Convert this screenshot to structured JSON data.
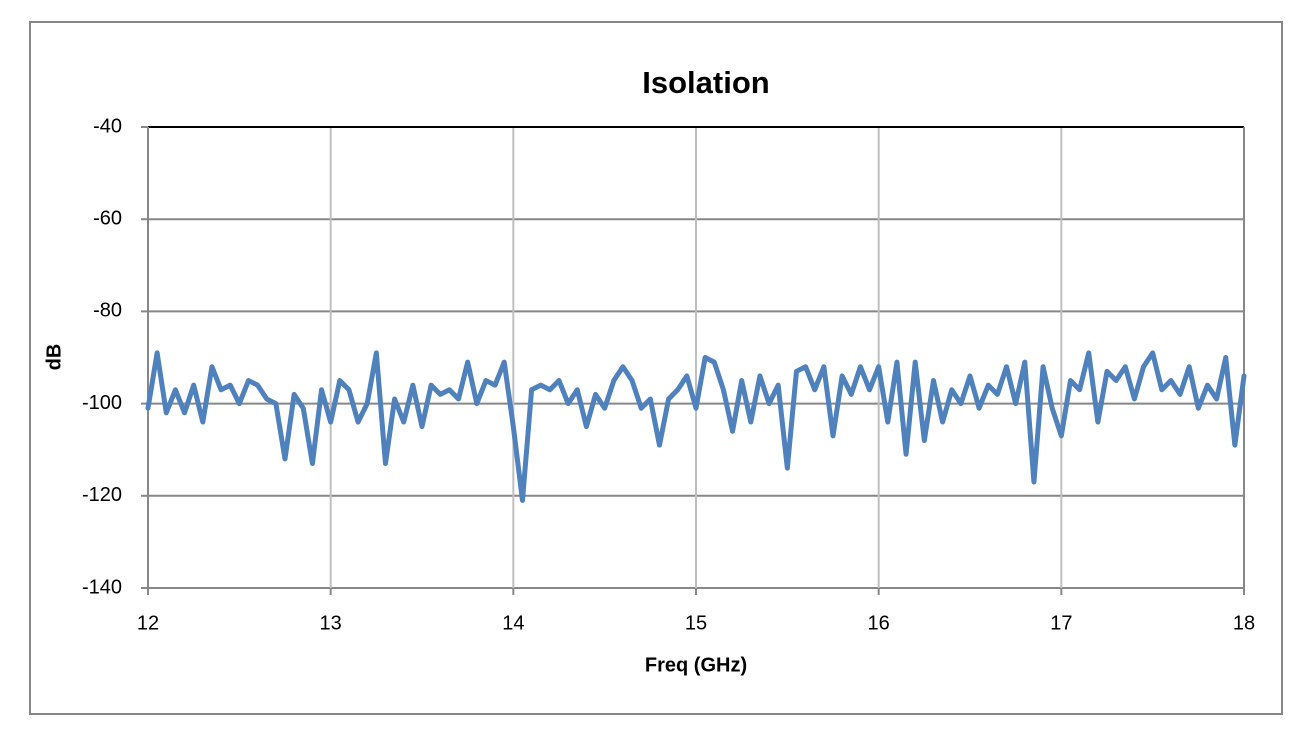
{
  "chart_data": {
    "type": "line",
    "title": "Isolation",
    "xlabel": "Freq (GHz)",
    "ylabel": "dB",
    "x": [
      12.0,
      12.05,
      12.1,
      12.15,
      12.2,
      12.25,
      12.3,
      12.35,
      12.4,
      12.45,
      12.5,
      12.55,
      12.6,
      12.65,
      12.7,
      12.75,
      12.8,
      12.85,
      12.9,
      12.95,
      13.0,
      13.05,
      13.1,
      13.15,
      13.2,
      13.25,
      13.3,
      13.35,
      13.4,
      13.45,
      13.5,
      13.55,
      13.6,
      13.65,
      13.7,
      13.75,
      13.8,
      13.85,
      13.9,
      13.95,
      14.0,
      14.05,
      14.1,
      14.15,
      14.2,
      14.25,
      14.3,
      14.35,
      14.4,
      14.45,
      14.5,
      14.55,
      14.6,
      14.65,
      14.7,
      14.75,
      14.8,
      14.85,
      14.9,
      14.95,
      15.0,
      15.05,
      15.1,
      15.15,
      15.2,
      15.25,
      15.3,
      15.35,
      15.4,
      15.45,
      15.5,
      15.55,
      15.6,
      15.65,
      15.7,
      15.75,
      15.8,
      15.85,
      15.9,
      15.95,
      16.0,
      16.05,
      16.1,
      16.15,
      16.2,
      16.25,
      16.3,
      16.35,
      16.4,
      16.45,
      16.5,
      16.55,
      16.6,
      16.65,
      16.7,
      16.75,
      16.8,
      16.85,
      16.9,
      16.95,
      17.0,
      17.05,
      17.1,
      17.15,
      17.2,
      17.25,
      17.3,
      17.35,
      17.4,
      17.45,
      17.5,
      17.55,
      17.6,
      17.65,
      17.7,
      17.75,
      17.8,
      17.85,
      17.9,
      17.95,
      18.0
    ],
    "series": [
      {
        "name": "Isolation",
        "color": "#4f81bd",
        "values": [
          -101,
          -89,
          -102,
          -97,
          -102,
          -96,
          -104,
          -92,
          -97,
          -96,
          -100,
          -95,
          -96,
          -99,
          -100,
          -112,
          -98,
          -101,
          -113,
          -97,
          -104,
          -95,
          -97,
          -104,
          -100,
          -89,
          -113,
          -99,
          -104,
          -96,
          -105,
          -96,
          -98,
          -97,
          -99,
          -91,
          -100,
          -95,
          -96,
          -91,
          -105,
          -121,
          -97,
          -96,
          -97,
          -95,
          -100,
          -97,
          -105,
          -98,
          -101,
          -95,
          -92,
          -95,
          -101,
          -99,
          -109,
          -99,
          -97,
          -94,
          -101,
          -90,
          -91,
          -97,
          -106,
          -95,
          -104,
          -94,
          -100,
          -96,
          -114,
          -93,
          -92,
          -97,
          -92,
          -107,
          -94,
          -98,
          -92,
          -97,
          -92,
          -104,
          -91,
          -111,
          -91,
          -108,
          -95,
          -104,
          -97,
          -100,
          -94,
          -101,
          -96,
          -98,
          -92,
          -100,
          -91,
          -117,
          -92,
          -101,
          -107,
          -95,
          -97,
          -89,
          -104,
          -93,
          -95,
          -92,
          -99,
          -92,
          -89,
          -97,
          -95,
          -98,
          -92,
          -101,
          -96,
          -99,
          -90,
          -109,
          -94
        ]
      }
    ],
    "xlim": [
      12,
      18
    ],
    "xticks": [
      12,
      13,
      14,
      15,
      16,
      17,
      18
    ],
    "ylim": [
      -140,
      -40
    ],
    "yticks": [
      -140,
      -120,
      -100,
      -80,
      -60,
      -40
    ],
    "grid": true
  }
}
